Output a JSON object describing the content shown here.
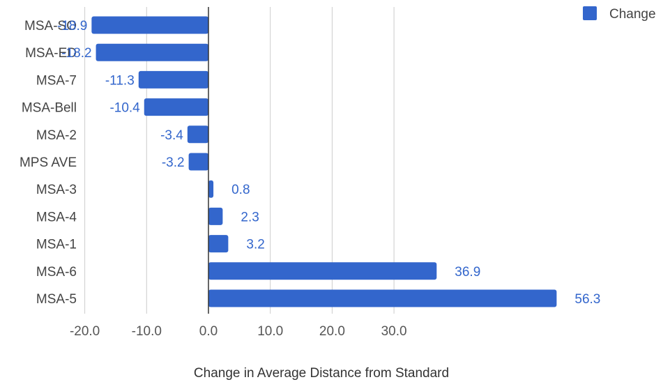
{
  "chart_data": {
    "type": "bar",
    "orientation": "horizontal",
    "categories": [
      "MSA-SO",
      "MSA-ED",
      "MSA-7",
      "MSA-Bell",
      "MSA-2",
      "MPS AVE",
      "MSA-3",
      "MSA-4",
      "MSA-1",
      "MSA-6",
      "MSA-5"
    ],
    "series": [
      {
        "name": "Change",
        "values": [
          -18.9,
          -18.2,
          -11.3,
          -10.4,
          -3.4,
          -3.2,
          0.8,
          2.3,
          3.2,
          36.9,
          56.3
        ],
        "labels": [
          "-18.9",
          "-18.2",
          "-11.3",
          "-10.4",
          "-3.4",
          "-3.2",
          "0.8",
          "2.3",
          "3.2",
          "36.9",
          "56.3"
        ]
      }
    ],
    "xlabel": "Change in Average Distance from Standard",
    "xlim": [
      -20,
      56.3
    ],
    "xticks": [
      -20,
      -10,
      0,
      10,
      20,
      30
    ],
    "xtick_labels": [
      "-20.0",
      "-10.0",
      "0.0",
      "10.0",
      "20.0",
      "30.0"
    ],
    "grid": true,
    "legend_position": "top-right",
    "colors": {
      "bar": "#3366cc",
      "label": "#3366cc",
      "grid": "#cccccc",
      "zero_line": "#333333"
    }
  }
}
